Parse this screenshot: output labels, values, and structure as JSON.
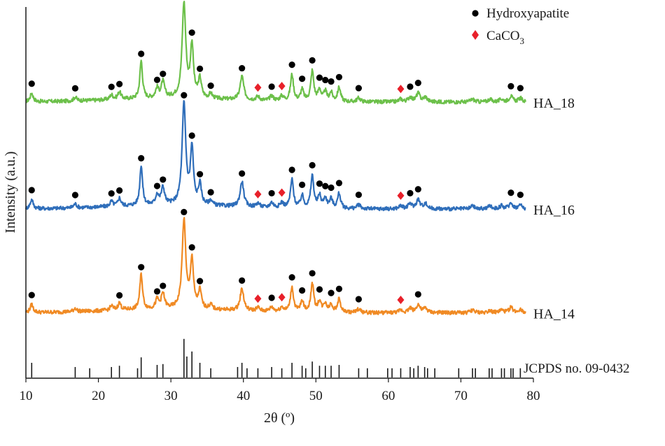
{
  "chart_data": {
    "type": "line",
    "xlabel": "2θ (º)",
    "ylabel": "Intensity (a.u.)",
    "xlim": [
      10,
      80
    ],
    "x_ticks": [
      10,
      20,
      30,
      40,
      50,
      60,
      70,
      80
    ],
    "legend": {
      "placement": "top-right",
      "entries": [
        {
          "label": "Hydroxyapatite",
          "marker": "circle",
          "color": "#000000"
        },
        {
          "label": "CaCO",
          "subscript": "3",
          "marker": "diamond",
          "color": "#e8202a"
        }
      ]
    },
    "peaks": [
      {
        "pos": 10.8,
        "height": 0.09,
        "width": 0.25
      },
      {
        "pos": 16.8,
        "height": 0.04,
        "width": 0.25
      },
      {
        "pos": 21.8,
        "height": 0.05,
        "width": 0.25
      },
      {
        "pos": 22.9,
        "height": 0.08,
        "width": 0.25
      },
      {
        "pos": 25.9,
        "height": 0.4,
        "width": 0.22
      },
      {
        "pos": 28.1,
        "height": 0.1,
        "width": 0.25
      },
      {
        "pos": 28.9,
        "height": 0.17,
        "width": 0.28
      },
      {
        "pos": 31.8,
        "height": 1.0,
        "width": 0.3
      },
      {
        "pos": 32.9,
        "height": 0.55,
        "width": 0.25
      },
      {
        "pos": 34.0,
        "height": 0.2,
        "width": 0.25
      },
      {
        "pos": 35.5,
        "height": 0.05,
        "width": 0.25
      },
      {
        "pos": 39.8,
        "height": 0.25,
        "width": 0.3
      },
      {
        "pos": 42.0,
        "height": 0.04,
        "width": 0.3
      },
      {
        "pos": 43.9,
        "height": 0.05,
        "width": 0.3
      },
      {
        "pos": 45.3,
        "height": 0.05,
        "width": 0.3
      },
      {
        "pos": 46.7,
        "height": 0.28,
        "width": 0.25
      },
      {
        "pos": 48.1,
        "height": 0.12,
        "width": 0.25
      },
      {
        "pos": 49.5,
        "height": 0.32,
        "width": 0.25
      },
      {
        "pos": 50.5,
        "height": 0.12,
        "width": 0.25
      },
      {
        "pos": 51.3,
        "height": 0.1,
        "width": 0.25
      },
      {
        "pos": 52.1,
        "height": 0.09,
        "width": 0.25
      },
      {
        "pos": 53.2,
        "height": 0.15,
        "width": 0.25
      },
      {
        "pos": 55.9,
        "height": 0.04,
        "width": 0.3
      },
      {
        "pos": 61.7,
        "height": 0.03,
        "width": 0.3
      },
      {
        "pos": 63.0,
        "height": 0.05,
        "width": 0.3
      },
      {
        "pos": 64.1,
        "height": 0.09,
        "width": 0.3
      },
      {
        "pos": 65.1,
        "height": 0.05,
        "width": 0.3
      },
      {
        "pos": 71.6,
        "height": 0.03,
        "width": 0.3
      },
      {
        "pos": 74.0,
        "height": 0.03,
        "width": 0.3
      },
      {
        "pos": 75.6,
        "height": 0.03,
        "width": 0.3
      },
      {
        "pos": 76.9,
        "height": 0.06,
        "width": 0.3
      },
      {
        "pos": 78.2,
        "height": 0.04,
        "width": 0.3
      }
    ],
    "series": [
      {
        "name": "HA_18",
        "color": "#6cc04a",
        "offset": 0.72,
        "peak_scale": 0.3,
        "hydroxyapatite_markers": [
          10.8,
          16.8,
          21.8,
          22.9,
          25.9,
          28.1,
          28.9,
          31.8,
          32.9,
          34.0,
          35.5,
          39.8,
          43.9,
          46.7,
          48.1,
          49.5,
          50.5,
          51.3,
          52.1,
          53.2,
          55.9,
          63.0,
          64.1,
          76.9,
          78.2
        ],
        "caco3_markers": [
          42.0,
          45.3,
          61.7
        ]
      },
      {
        "name": "HA_16",
        "color": "#2f6eba",
        "offset": 0.38,
        "peak_scale": 0.32,
        "hydroxyapatite_markers": [
          10.8,
          16.8,
          21.8,
          22.9,
          25.9,
          28.1,
          28.9,
          31.8,
          32.9,
          34.0,
          35.5,
          39.8,
          43.9,
          46.7,
          48.1,
          49.5,
          50.5,
          51.3,
          52.1,
          53.2,
          55.9,
          63.0,
          64.1,
          76.9,
          78.2
        ],
        "caco3_markers": [
          42.0,
          45.3,
          61.7
        ]
      },
      {
        "name": "HA_14",
        "color": "#f08a24",
        "offset": 0.05,
        "peak_scale": 0.28,
        "hydroxyapatite_markers": [
          10.8,
          22.9,
          25.9,
          28.1,
          28.9,
          31.8,
          32.9,
          34.0,
          39.8,
          43.9,
          46.7,
          48.1,
          49.5,
          50.5,
          52.1,
          53.2,
          55.9,
          64.1
        ],
        "caco3_markers": [
          42.0,
          45.3,
          61.7
        ]
      }
    ],
    "reference": {
      "label": "JCPDS no. 09-0432",
      "lines": [
        {
          "pos": 10.8,
          "h": 0.35
        },
        {
          "pos": 16.8,
          "h": 0.25
        },
        {
          "pos": 18.8,
          "h": 0.22
        },
        {
          "pos": 21.8,
          "h": 0.25
        },
        {
          "pos": 22.9,
          "h": 0.28
        },
        {
          "pos": 25.4,
          "h": 0.22
        },
        {
          "pos": 25.9,
          "h": 0.48
        },
        {
          "pos": 28.1,
          "h": 0.3
        },
        {
          "pos": 28.9,
          "h": 0.32
        },
        {
          "pos": 31.8,
          "h": 0.92
        },
        {
          "pos": 32.2,
          "h": 0.5
        },
        {
          "pos": 32.9,
          "h": 0.62
        },
        {
          "pos": 34.0,
          "h": 0.35
        },
        {
          "pos": 35.5,
          "h": 0.22
        },
        {
          "pos": 39.2,
          "h": 0.25
        },
        {
          "pos": 39.8,
          "h": 0.35
        },
        {
          "pos": 40.5,
          "h": 0.22
        },
        {
          "pos": 42.0,
          "h": 0.22
        },
        {
          "pos": 43.9,
          "h": 0.25
        },
        {
          "pos": 45.3,
          "h": 0.22
        },
        {
          "pos": 46.7,
          "h": 0.35
        },
        {
          "pos": 48.1,
          "h": 0.28
        },
        {
          "pos": 48.6,
          "h": 0.22
        },
        {
          "pos": 49.5,
          "h": 0.38
        },
        {
          "pos": 50.5,
          "h": 0.28
        },
        {
          "pos": 51.3,
          "h": 0.28
        },
        {
          "pos": 52.1,
          "h": 0.28
        },
        {
          "pos": 53.2,
          "h": 0.3
        },
        {
          "pos": 55.9,
          "h": 0.22
        },
        {
          "pos": 57.1,
          "h": 0.22
        },
        {
          "pos": 59.9,
          "h": 0.22
        },
        {
          "pos": 60.5,
          "h": 0.22
        },
        {
          "pos": 61.7,
          "h": 0.22
        },
        {
          "pos": 63.0,
          "h": 0.25
        },
        {
          "pos": 63.5,
          "h": 0.22
        },
        {
          "pos": 64.1,
          "h": 0.28
        },
        {
          "pos": 65.0,
          "h": 0.25
        },
        {
          "pos": 65.4,
          "h": 0.22
        },
        {
          "pos": 66.4,
          "h": 0.22
        },
        {
          "pos": 69.7,
          "h": 0.22
        },
        {
          "pos": 71.6,
          "h": 0.22
        },
        {
          "pos": 72.0,
          "h": 0.22
        },
        {
          "pos": 73.9,
          "h": 0.22
        },
        {
          "pos": 74.3,
          "h": 0.22
        },
        {
          "pos": 75.6,
          "h": 0.22
        },
        {
          "pos": 76.0,
          "h": 0.22
        },
        {
          "pos": 76.9,
          "h": 0.22
        },
        {
          "pos": 77.2,
          "h": 0.22
        },
        {
          "pos": 78.2,
          "h": 0.22
        }
      ]
    }
  }
}
